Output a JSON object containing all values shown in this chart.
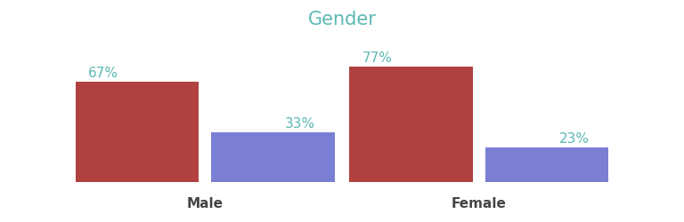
{
  "title": "Gender",
  "title_color": "#5bb8b2",
  "title_fontsize": 15,
  "groups": [
    "Male",
    "Female"
  ],
  "bar1_values": [
    67,
    77
  ],
  "bar2_values": [
    33,
    23
  ],
  "bar1_color": "#b0413e",
  "bar2_color": "#7b7fd4",
  "bar_width": 0.18,
  "label_color": "#5bb8b2",
  "label_fontsize": 11,
  "xlabel_fontsize": 11,
  "xlabel_color": "#444444",
  "background_color": "#ffffff",
  "ylim": [
    0,
    95
  ],
  "group_centers": [
    0.3,
    0.7
  ]
}
